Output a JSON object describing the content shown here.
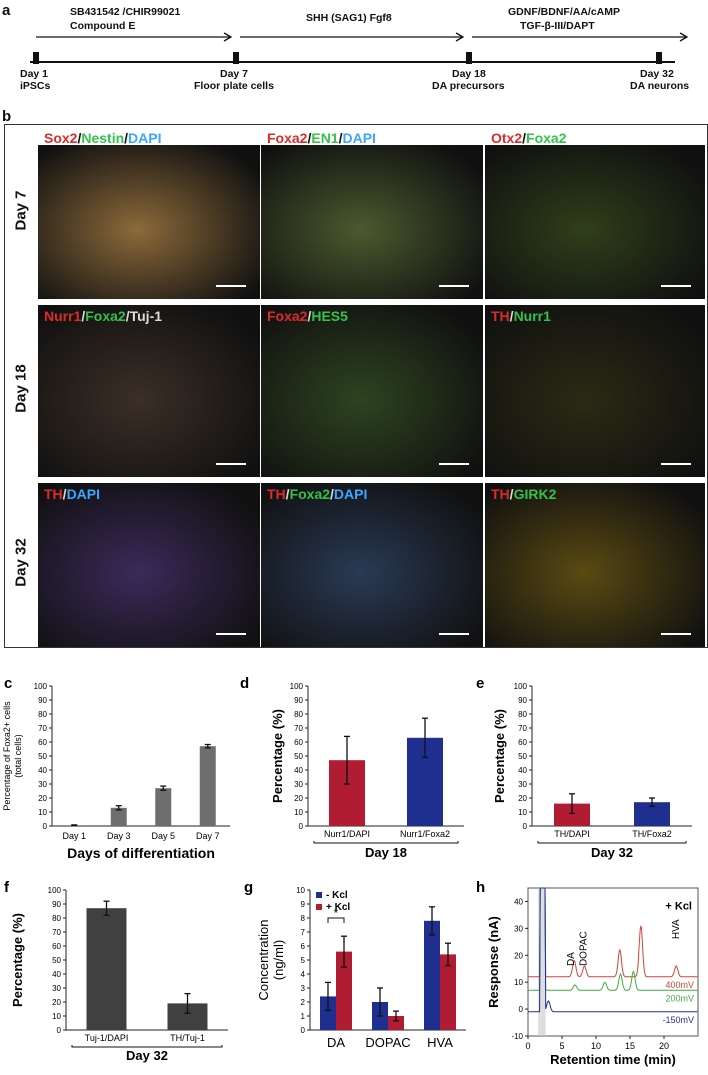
{
  "panel_a": {
    "label": "a",
    "top_labels": [
      "SB431542 /CHIR99021",
      "Compound E",
      "SHH (SAG1) Fgf8",
      "GDNF/BDNF/AA/cAMP",
      "TGF-β-III/DAPT"
    ],
    "days": [
      {
        "day": "Day 1",
        "stage": "iPSCs"
      },
      {
        "day": "Day 7",
        "stage": "Floor plate cells"
      },
      {
        "day": "Day 18",
        "stage": "DA precursors"
      },
      {
        "day": "Day 32",
        "stage": "DA neurons"
      }
    ]
  },
  "panel_b": {
    "label": "b",
    "rows": [
      "Day 7",
      "Day 18",
      "Day 32"
    ],
    "images": [
      [
        {
          "parts": [
            {
              "t": "Sox2",
              "c": "r"
            },
            {
              "t": "/",
              "c": "k"
            },
            {
              "t": "Nestin",
              "c": "g"
            },
            {
              "t": "/",
              "c": "k"
            },
            {
              "t": "DAPI",
              "c": "b"
            }
          ],
          "bg": "#8c6a3a"
        },
        {
          "parts": [
            {
              "t": "Foxa2",
              "c": "r"
            },
            {
              "t": "/",
              "c": "k"
            },
            {
              "t": "EN1",
              "c": "g"
            },
            {
              "t": "/",
              "c": "k"
            },
            {
              "t": "DAPI",
              "c": "b"
            }
          ],
          "bg": "#4a5a2e"
        },
        {
          "parts": [
            {
              "t": "Otx2",
              "c": "r"
            },
            {
              "t": "/",
              "c": "k"
            },
            {
              "t": "Foxa2",
              "c": "g"
            }
          ],
          "bg": "#2f3f1a"
        }
      ],
      [
        {
          "parts": [
            {
              "t": "Nurr1",
              "c": "r"
            },
            {
              "t": "/",
              "c": "w"
            },
            {
              "t": "Foxa2",
              "c": "g"
            },
            {
              "t": "/",
              "c": "w"
            },
            {
              "t": "Tuj-1",
              "c": "w"
            }
          ],
          "bg": "#3b2f26"
        },
        {
          "parts": [
            {
              "t": "Foxa2",
              "c": "r"
            },
            {
              "t": "/",
              "c": "w"
            },
            {
              "t": "HES5",
              "c": "g"
            }
          ],
          "bg": "#2e4420"
        },
        {
          "parts": [
            {
              "t": "TH",
              "c": "r"
            },
            {
              "t": "/",
              "c": "w"
            },
            {
              "t": "Nurr1",
              "c": "g"
            }
          ],
          "bg": "#2b2a14"
        }
      ],
      [
        {
          "parts": [
            {
              "t": "TH",
              "c": "r"
            },
            {
              "t": "/",
              "c": "w"
            },
            {
              "t": "DAPI",
              "c": "b"
            }
          ],
          "bg": "#3b2a5a"
        },
        {
          "parts": [
            {
              "t": "TH",
              "c": "r"
            },
            {
              "t": "/",
              "c": "w"
            },
            {
              "t": "Foxa2",
              "c": "g"
            },
            {
              "t": "/",
              "c": "w"
            },
            {
              "t": "DAPI",
              "c": "b"
            }
          ],
          "bg": "#2a3a55"
        },
        {
          "parts": [
            {
              "t": "TH",
              "c": "r"
            },
            {
              "t": "/",
              "c": "w"
            },
            {
              "t": "GIRK2",
              "c": "g"
            }
          ],
          "bg": "#5a4a12"
        }
      ]
    ]
  },
  "chart_data": [
    {
      "panel": "c",
      "type": "bar",
      "categories": [
        "Day 1",
        "Day 3",
        "Day 5",
        "Day 7"
      ],
      "values": [
        0.5,
        13,
        27,
        57
      ],
      "errors": [
        0.3,
        1.5,
        1.5,
        1.2
      ],
      "ylabel": "Percentage of Foxa2+ cells (total cells)",
      "ylabel_lines": [
        "Percentage of Foxa2+ cells",
        "(total cells)"
      ],
      "xlabel": "Days of differentiation",
      "ylim": [
        0,
        100
      ],
      "yticks": [
        0,
        10,
        20,
        30,
        40,
        50,
        60,
        70,
        80,
        90,
        100
      ],
      "color": "#6e6e6e"
    },
    {
      "panel": "d",
      "type": "bar",
      "categories": [
        "Nurr1/DAPI",
        "Nurr1/Foxa2"
      ],
      "values": [
        47,
        63
      ],
      "errors": [
        17,
        14
      ],
      "ylabel": "Percentage (%)",
      "xlabel": "Day 18",
      "ylim": [
        0,
        100
      ],
      "yticks": [
        0,
        10,
        20,
        30,
        40,
        50,
        60,
        70,
        80,
        90,
        100
      ],
      "colors": [
        "#b01c32",
        "#1f2f8f"
      ]
    },
    {
      "panel": "e",
      "type": "bar",
      "categories": [
        "TH/DAPI",
        "TH/Foxa2"
      ],
      "values": [
        16,
        17
      ],
      "errors": [
        7,
        3
      ],
      "ylabel": "Percentage (%)",
      "xlabel": "Day 32",
      "ylim": [
        0,
        100
      ],
      "yticks": [
        0,
        10,
        20,
        30,
        40,
        50,
        60,
        70,
        80,
        90,
        100
      ],
      "colors": [
        "#b01c32",
        "#1f2f8f"
      ]
    },
    {
      "panel": "f",
      "type": "bar",
      "categories": [
        "Tuj-1/DAPI",
        "TH/Tuj-1"
      ],
      "values": [
        87,
        19
      ],
      "errors": [
        5,
        7
      ],
      "ylabel": "Percentage (%)",
      "xlabel": "Day 32",
      "ylim": [
        0,
        100
      ],
      "yticks": [
        0,
        10,
        20,
        30,
        40,
        50,
        60,
        70,
        80,
        90,
        100
      ],
      "color": "#404040"
    },
    {
      "panel": "g",
      "type": "bar",
      "categories": [
        "DA",
        "DOPAC",
        "HVA"
      ],
      "series": [
        {
          "name": "- Kcl",
          "values": [
            2.4,
            2.0,
            7.8
          ],
          "errors": [
            1.0,
            1.0,
            1.0
          ],
          "color": "#1f2f8f"
        },
        {
          "name": "+ Kcl",
          "values": [
            5.6,
            1.0,
            5.4
          ],
          "errors": [
            1.1,
            0.35,
            0.8
          ],
          "color": "#b01c32"
        }
      ],
      "ylabel": "Concentration (ng/ml)",
      "ylabel_lines": [
        "Concentration",
        "(ng/ml)"
      ],
      "ylim": [
        0,
        10
      ],
      "yticks": [
        0,
        1,
        2,
        3,
        4,
        5,
        6,
        7,
        8,
        9,
        10
      ],
      "legend": "top-left",
      "significance": "*"
    },
    {
      "panel": "h",
      "type": "line",
      "ylabel": "Response (nA)",
      "xlabel": "Retention time (min)",
      "xlim": [
        0,
        25
      ],
      "ylim": [
        -10,
        45
      ],
      "xticks": [
        0,
        5,
        10,
        15,
        20
      ],
      "yticks": [
        -10,
        0,
        10,
        20,
        30,
        40
      ],
      "annotation": "+ Kcl",
      "peak_labels": [
        "DA",
        "DOPAC",
        "HVA"
      ],
      "series": [
        {
          "name": "400mV",
          "color": "#d0443a",
          "baseline": 12,
          "peaks": [
            [
              6.8,
              6
            ],
            [
              8.3,
              4
            ],
            [
              13.5,
              10
            ],
            [
              16.6,
              19
            ],
            [
              21.8,
              4
            ]
          ]
        },
        {
          "name": "200mV",
          "color": "#3fae3f",
          "baseline": 7,
          "peaks": [
            [
              6.9,
              2
            ],
            [
              11.3,
              3
            ],
            [
              13.6,
              6
            ],
            [
              15.5,
              7
            ]
          ]
        },
        {
          "name": "-150mV",
          "color": "#1f2f9f",
          "baseline": -1,
          "peaks": [
            [
              3.0,
              4
            ]
          ]
        }
      ]
    }
  ]
}
